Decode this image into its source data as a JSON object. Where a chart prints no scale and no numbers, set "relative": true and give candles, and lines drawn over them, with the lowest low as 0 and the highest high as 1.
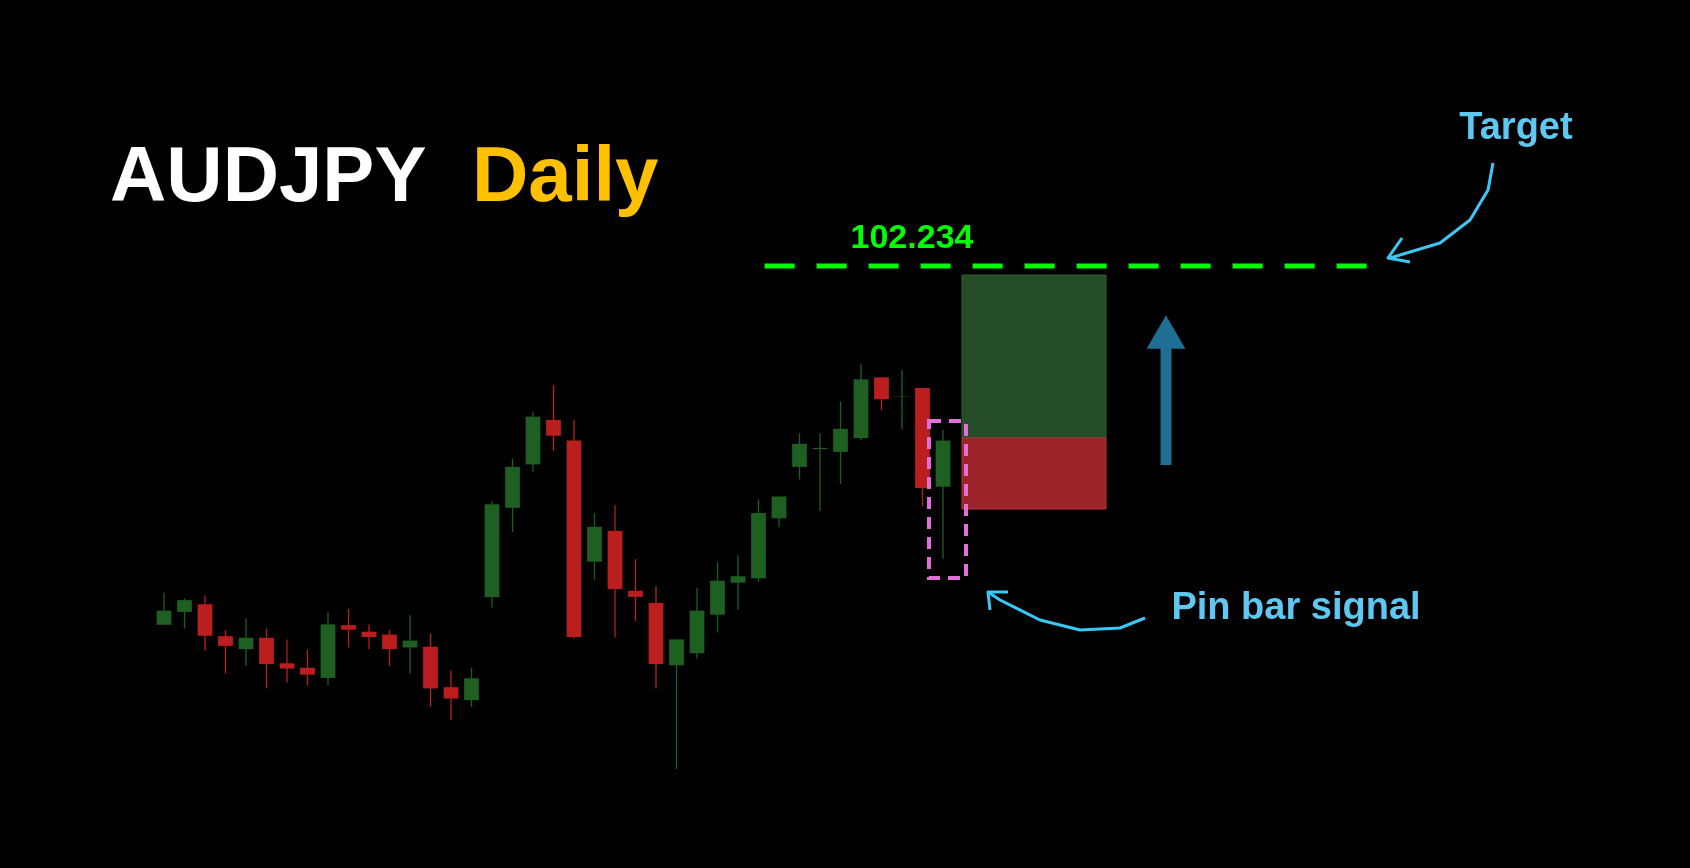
{
  "chart_data": {
    "type": "candlestick",
    "title": "AUDJPY",
    "subtitle": "Daily",
    "relative": true,
    "categories": [
      null,
      null,
      null,
      null,
      null,
      null,
      null,
      null,
      null,
      null,
      null,
      null,
      null,
      null,
      null,
      null,
      null,
      null,
      null,
      null,
      null,
      null,
      null,
      null,
      null,
      null,
      null,
      null,
      null,
      null,
      null,
      null,
      null,
      null,
      null,
      null,
      null,
      null,
      null
    ],
    "ohlc": [
      [
        0.356,
        0.435,
        0.356,
        0.391
      ],
      [
        0.388,
        0.421,
        0.347,
        0.417
      ],
      [
        0.407,
        0.429,
        0.292,
        0.329
      ],
      [
        0.328,
        0.343,
        0.236,
        0.304
      ],
      [
        0.296,
        0.372,
        0.255,
        0.324
      ],
      [
        0.324,
        0.347,
        0.199,
        0.259
      ],
      [
        0.261,
        0.32,
        0.214,
        0.248
      ],
      [
        0.25,
        0.294,
        0.206,
        0.233
      ],
      [
        0.225,
        0.387,
        0.206,
        0.357
      ],
      [
        0.355,
        0.395,
        0.3,
        0.344
      ],
      [
        0.339,
        0.357,
        0.296,
        0.326
      ],
      [
        0.332,
        0.343,
        0.255,
        0.296
      ],
      [
        0.3,
        0.38,
        0.236,
        0.317
      ],
      [
        0.302,
        0.335,
        0.154,
        0.199
      ],
      [
        0.202,
        0.243,
        0.121,
        0.174
      ],
      [
        0.17,
        0.25,
        0.154,
        0.224
      ],
      [
        0.425,
        0.662,
        0.399,
        0.654
      ],
      [
        0.645,
        0.766,
        0.585,
        0.746
      ],
      [
        0.752,
        0.881,
        0.734,
        0.87
      ],
      [
        0.862,
        0.948,
        0.786,
        0.823
      ],
      [
        0.811,
        0.862,
        0.322,
        0.326
      ],
      [
        0.512,
        0.632,
        0.467,
        0.598
      ],
      [
        0.588,
        0.651,
        0.325,
        0.444
      ],
      [
        0.44,
        0.518,
        0.366,
        0.425
      ],
      [
        0.41,
        0.451,
        0.199,
        0.259
      ],
      [
        0.256,
        0.32,
        0.0,
        0.32
      ],
      [
        0.286,
        0.447,
        0.273,
        0.391
      ],
      [
        0.381,
        0.51,
        0.337,
        0.465
      ],
      [
        0.46,
        0.528,
        0.393,
        0.476
      ],
      [
        0.471,
        0.666,
        0.462,
        0.632
      ],
      [
        0.619,
        0.673,
        0.597,
        0.673
      ],
      [
        0.746,
        0.829,
        0.715,
        0.803
      ],
      [
        0.79,
        0.829,
        0.637,
        0.793
      ],
      [
        0.783,
        0.907,
        0.704,
        0.84
      ],
      [
        0.817,
        1.0,
        0.812,
        0.962
      ],
      [
        0.967,
        0.967,
        0.886,
        0.913
      ],
      [
        0.919,
        0.985,
        0.839,
        0.92
      ],
      [
        0.941,
        0.941,
        0.649,
        0.694
      ],
      [
        0.697,
        0.837,
        0.519,
        0.811
      ]
    ],
    "colors": [
      "#1e5f22",
      "#1e5f22",
      "#bb1e1e",
      "#bb1e1e",
      "#1e5f22",
      "#bb1e1e",
      "#bb1e1e",
      "#bb1e1e",
      "#1e5f22",
      "#bb1e1e",
      "#bb1e1e",
      "#bb1e1e",
      "#1e5f22",
      "#bb1e1e",
      "#bb1e1e",
      "#1e5f22",
      "#1e5f22",
      "#1e5f22",
      "#1e5f22",
      "#bb1e1e",
      "#bb1e1e",
      "#1e5f22",
      "#bb1e1e",
      "#bb1e1e",
      "#bb1e1e",
      "#1e5f22",
      "#1e5f22",
      "#1e5f22",
      "#1e5f22",
      "#1e5f22",
      "#1e5f22",
      "#1e5f22",
      "#1e5f22",
      "#1e5f22",
      "#1e5f22",
      "#bb1e1e",
      "#1e5f22",
      "#bb1e1e",
      "#1e5f22"
    ],
    "ref_lines": [
      {
        "axis": "y",
        "value": 1.242,
        "color": "#00ff00",
        "line_style": "dashed"
      }
    ],
    "annotations": [
      "102.234",
      "Target",
      "Pin bar signal"
    ]
  }
}
